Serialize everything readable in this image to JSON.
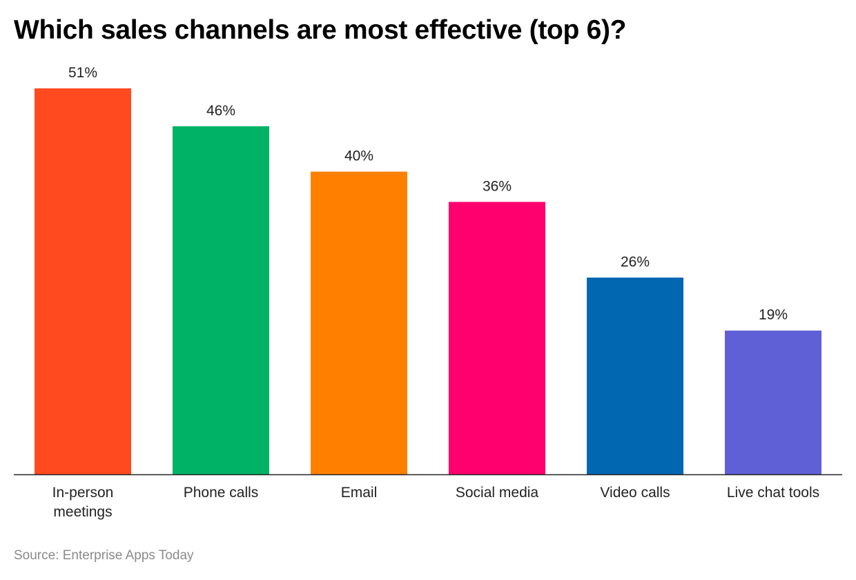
{
  "chart_data": {
    "type": "bar",
    "title": "Which sales channels are most effective (top 6)?",
    "categories": [
      "In-person meetings",
      "Phone calls",
      "Email",
      "Social media",
      "Video calls",
      "Live chat tools"
    ],
    "category_lines": [
      [
        "In-person",
        "meetings"
      ],
      [
        "Phone calls"
      ],
      [
        "Email"
      ],
      [
        "Social media"
      ],
      [
        "Video calls"
      ],
      [
        "Live chat tools"
      ]
    ],
    "values": [
      51,
      46,
      40,
      36,
      26,
      19
    ],
    "data_labels": [
      "51%",
      "46%",
      "40%",
      "36%",
      "26%",
      "19%"
    ],
    "colors": [
      "#FF4A1F",
      "#00B265",
      "#FF8000",
      "#FF006E",
      "#0067B0",
      "#5F60D6"
    ],
    "xlabel": "",
    "ylabel": "",
    "ylim": [
      0,
      51
    ],
    "grid": false,
    "legend": "none"
  },
  "source": "Source: Enterprise Apps Today"
}
